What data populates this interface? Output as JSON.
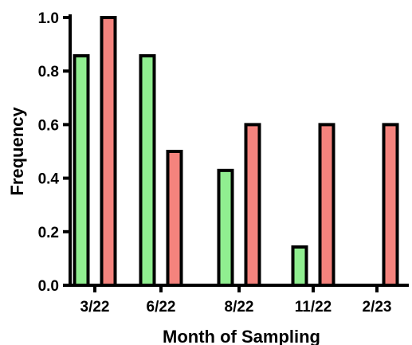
{
  "chart_data": {
    "type": "bar",
    "title": "",
    "xlabel": "Month of Sampling",
    "ylabel": "Frequency",
    "categories": [
      "3/22",
      "6/22",
      "8/22",
      "11/22",
      "2/23"
    ],
    "ylim": [
      0,
      1.0
    ],
    "yticks": [
      "0.0",
      "0.2",
      "0.4",
      "0.6",
      "0.8",
      "1.0"
    ],
    "series": [
      {
        "color": "#90EE90",
        "values": [
          0.857,
          0.857,
          0.429,
          0.143,
          0
        ]
      },
      {
        "color": "#F4837D",
        "values": [
          1.0,
          0.5,
          0.6,
          0.6,
          0.6
        ]
      }
    ],
    "grid": false,
    "legend": "none"
  }
}
